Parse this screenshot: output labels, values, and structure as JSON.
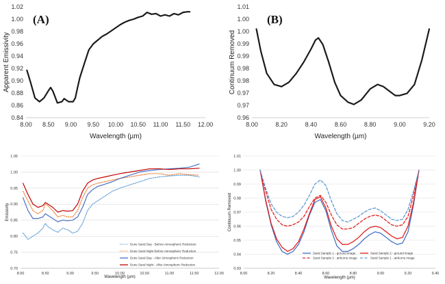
{
  "chart_data": [
    {
      "type": "line",
      "panel_label": "(A)",
      "xlabel": "Wavelength (µm)",
      "ylabel": "Apparent Emissivity",
      "xlim": [
        8.0,
        12.0
      ],
      "ylim": [
        0.84,
        1.02
      ],
      "x_ticks": [
        "8.00",
        "8.50",
        "9.00",
        "9.50",
        "10.00",
        "10.50",
        "11.00",
        "11.50",
        "12.00"
      ],
      "y_ticks": [
        "0.84",
        "0.86",
        "0.88",
        "0.90",
        "0.92",
        "0.94",
        "0.96",
        "0.98",
        "1.00",
        "1.02"
      ],
      "grid": false,
      "series": [
        {
          "color": "#1a1a1a",
          "x": [
            8.02,
            8.1,
            8.2,
            8.3,
            8.4,
            8.5,
            8.55,
            8.6,
            8.7,
            8.8,
            8.85,
            8.95,
            9.05,
            9.1,
            9.15,
            9.2,
            9.3,
            9.4,
            9.5,
            9.6,
            9.7,
            9.8,
            9.9,
            10.0,
            10.1,
            10.2,
            10.3,
            10.4,
            10.5,
            10.6,
            10.7,
            10.8,
            10.9,
            11.0,
            11.1,
            11.2,
            11.3,
            11.4,
            11.5,
            11.6,
            11.65
          ],
          "y": [
            0.917,
            0.898,
            0.872,
            0.866,
            0.872,
            0.884,
            0.889,
            0.883,
            0.864,
            0.866,
            0.871,
            0.866,
            0.866,
            0.872,
            0.889,
            0.905,
            0.928,
            0.95,
            0.96,
            0.966,
            0.972,
            0.976,
            0.981,
            0.986,
            0.991,
            0.995,
            0.998,
            1.0,
            1.003,
            1.005,
            1.011,
            1.008,
            1.009,
            1.005,
            1.007,
            1.005,
            1.009,
            1.007,
            1.011,
            1.012,
            1.012
          ]
        }
      ]
    },
    {
      "type": "line",
      "panel_label": "(B)",
      "xlabel": "Wavelength (µm)",
      "ylabel": "Continuum Removed",
      "xlim": [
        8.0,
        9.2
      ],
      "ylim": [
        0.96,
        1.01
      ],
      "x_ticks": [
        "8.00",
        "8.20",
        "8.40",
        "8.60",
        "8.80",
        "9.00",
        "9.20"
      ],
      "y_ticks": [
        "0.96",
        "0.97",
        "0.97",
        "0.98",
        "0.98",
        "0.99",
        "0.99",
        "1.00",
        "1.00",
        "1.01"
      ],
      "grid": false,
      "series": [
        {
          "color": "#1a1a1a",
          "x": [
            8.03,
            8.06,
            8.1,
            8.15,
            8.2,
            8.25,
            8.3,
            8.35,
            8.4,
            8.43,
            8.45,
            8.48,
            8.52,
            8.56,
            8.6,
            8.65,
            8.69,
            8.74,
            8.8,
            8.85,
            8.89,
            8.93,
            8.97,
            9.0,
            9.05,
            9.1,
            9.15,
            9.2
          ],
          "y": [
            1.0,
            0.99,
            0.98,
            0.975,
            0.974,
            0.976,
            0.98,
            0.985,
            0.991,
            0.995,
            0.996,
            0.993,
            0.985,
            0.976,
            0.97,
            0.967,
            0.966,
            0.968,
            0.973,
            0.975,
            0.974,
            0.972,
            0.97,
            0.97,
            0.971,
            0.975,
            0.986,
            1.0
          ]
        }
      ]
    },
    {
      "type": "line",
      "xlabel": "Wavelength (µm)",
      "ylabel": "Emissivity",
      "xlim": [
        8.0,
        12.0
      ],
      "ylim": [
        0.7,
        1.05
      ],
      "x_ticks": [
        "8.00",
        "8.50",
        "9.00",
        "9.50",
        "10.00",
        "10.50",
        "11.00",
        "11.50",
        "12.00"
      ],
      "y_ticks": [
        "0.70",
        "0.75",
        "0.80",
        "0.85",
        "0.90",
        "0.95",
        "1.00",
        "1.05"
      ],
      "grid": true,
      "legend_position": "bottom-right",
      "series": [
        {
          "name": "Dune Sand Day - Before Atmospheric Reduction",
          "color": "#5b9bd5",
          "dash": "dotted",
          "x": [
            8.05,
            8.15,
            8.25,
            8.35,
            8.45,
            8.5,
            8.55,
            8.65,
            8.75,
            8.85,
            8.95,
            9.05,
            9.15,
            9.25,
            9.35,
            9.45,
            9.55,
            9.7,
            9.85,
            10.0,
            10.2,
            10.4,
            10.6,
            10.8,
            11.0,
            11.2,
            11.4,
            11.6
          ],
          "y": [
            0.81,
            0.79,
            0.8,
            0.81,
            0.825,
            0.84,
            0.83,
            0.82,
            0.812,
            0.825,
            0.82,
            0.81,
            0.815,
            0.84,
            0.88,
            0.9,
            0.91,
            0.925,
            0.94,
            0.95,
            0.96,
            0.97,
            0.98,
            0.985,
            0.988,
            0.99,
            0.99,
            0.985
          ]
        },
        {
          "name": "Dune Sand Night Before Atmospheric Reduction",
          "color": "#ed7d31",
          "dash": "dotted",
          "x": [
            8.05,
            8.15,
            8.25,
            8.35,
            8.45,
            8.5,
            8.55,
            8.65,
            8.75,
            8.85,
            8.95,
            9.05,
            9.15,
            9.25,
            9.35,
            9.45,
            9.55,
            9.7,
            9.85,
            10.0,
            10.2,
            10.4,
            10.6,
            10.8,
            11.0,
            11.2,
            11.4,
            11.6
          ],
          "y": [
            0.94,
            0.91,
            0.88,
            0.87,
            0.88,
            0.9,
            0.895,
            0.88,
            0.86,
            0.865,
            0.86,
            0.86,
            0.88,
            0.92,
            0.95,
            0.96,
            0.965,
            0.97,
            0.975,
            0.98,
            0.985,
            0.99,
            0.995,
            0.995,
            0.99,
            0.995,
            0.992,
            0.99
          ]
        },
        {
          "name": "Dune Sand Day - After Atmospheric Reduction",
          "color": "#4472c4",
          "dash": "solid",
          "x": [
            8.05,
            8.15,
            8.25,
            8.35,
            8.45,
            8.5,
            8.55,
            8.65,
            8.75,
            8.85,
            8.95,
            9.05,
            9.15,
            9.25,
            9.35,
            9.45,
            9.55,
            9.7,
            9.85,
            10.0,
            10.2,
            10.4,
            10.6,
            10.8,
            11.0,
            11.2,
            11.4,
            11.6
          ],
          "y": [
            0.92,
            0.88,
            0.855,
            0.855,
            0.86,
            0.87,
            0.865,
            0.855,
            0.845,
            0.85,
            0.848,
            0.85,
            0.86,
            0.89,
            0.93,
            0.945,
            0.955,
            0.962,
            0.97,
            0.98,
            0.99,
            1.0,
            1.005,
            1.008,
            1.01,
            1.012,
            1.015,
            1.025
          ]
        },
        {
          "name": "Dune Sand Night - After Atmospheric Reduction",
          "color": "#c00000",
          "dash": "solid",
          "x": [
            8.05,
            8.15,
            8.25,
            8.35,
            8.45,
            8.5,
            8.55,
            8.65,
            8.75,
            8.85,
            8.95,
            9.05,
            9.15,
            9.25,
            9.35,
            9.45,
            9.55,
            9.7,
            9.85,
            10.0,
            10.2,
            10.4,
            10.6,
            10.8,
            11.0,
            11.2,
            11.4,
            11.6
          ],
          "y": [
            0.965,
            0.93,
            0.9,
            0.89,
            0.895,
            0.905,
            0.9,
            0.89,
            0.875,
            0.88,
            0.878,
            0.88,
            0.9,
            0.94,
            0.965,
            0.975,
            0.98,
            0.985,
            0.99,
            0.995,
            1.0,
            1.005,
            1.01,
            1.01,
            1.008,
            1.01,
            1.01,
            1.012
          ]
        }
      ]
    },
    {
      "type": "line",
      "xlabel": "Wavelength (µm)",
      "ylabel": "Continuum Removed",
      "xlim": [
        8.0,
        9.4
      ],
      "ylim": [
        0.93,
        1.01
      ],
      "x_ticks": [
        "8.00",
        "8.20",
        "8.40",
        "8.60",
        "8.80",
        "9.00",
        "9.20",
        "9.40"
      ],
      "y_ticks": [
        "0.93",
        "0.94",
        "0.95",
        "0.96",
        "0.97",
        "0.98",
        "0.99",
        "1.00",
        "1.01"
      ],
      "grid": true,
      "legend_position": "bottom",
      "series": [
        {
          "name": "Sand Sample 1 - ground image",
          "color": "#4472c4",
          "dash": "solid",
          "x": [
            8.12,
            8.16,
            8.2,
            8.24,
            8.28,
            8.32,
            8.36,
            8.4,
            8.44,
            8.48,
            8.52,
            8.56,
            8.6,
            8.64,
            8.68,
            8.72,
            8.76,
            8.8,
            8.84,
            8.88,
            8.92,
            8.96,
            9.0,
            9.04,
            9.08,
            9.12,
            9.16,
            9.2,
            9.24,
            9.28
          ],
          "y": [
            1.0,
            0.978,
            0.961,
            0.949,
            0.942,
            0.94,
            0.942,
            0.947,
            0.956,
            0.968,
            0.977,
            0.979,
            0.971,
            0.957,
            0.946,
            0.942,
            0.942,
            0.944,
            0.947,
            0.951,
            0.954,
            0.956,
            0.955,
            0.952,
            0.949,
            0.947,
            0.948,
            0.956,
            0.975,
            1.0
          ]
        },
        {
          "name": "Sand Sample 2 - ground image",
          "color": "#e02020",
          "dash": "solid",
          "x": [
            8.12,
            8.16,
            8.2,
            8.24,
            8.28,
            8.32,
            8.36,
            8.4,
            8.44,
            8.48,
            8.52,
            8.56,
            8.6,
            8.64,
            8.68,
            8.72,
            8.76,
            8.8,
            8.84,
            8.88,
            8.92,
            8.96,
            9.0,
            9.04,
            9.08,
            9.12,
            9.16,
            9.2,
            9.24,
            9.28
          ],
          "y": [
            1.0,
            0.979,
            0.962,
            0.951,
            0.945,
            0.942,
            0.944,
            0.949,
            0.958,
            0.969,
            0.979,
            0.981,
            0.973,
            0.96,
            0.951,
            0.947,
            0.947,
            0.949,
            0.952,
            0.956,
            0.959,
            0.96,
            0.959,
            0.956,
            0.953,
            0.951,
            0.952,
            0.96,
            0.977,
            1.0
          ]
        },
        {
          "name": "Sand Sample 2 - airborne image",
          "color": "#e02020",
          "dash": "dashed",
          "x": [
            8.12,
            8.16,
            8.2,
            8.24,
            8.28,
            8.32,
            8.36,
            8.4,
            8.44,
            8.48,
            8.52,
            8.56,
            8.6,
            8.64,
            8.68,
            8.72,
            8.76,
            8.8,
            8.84,
            8.88,
            8.92,
            8.96,
            9.0,
            9.04,
            9.08,
            9.12,
            9.16,
            9.2,
            9.24,
            9.28
          ],
          "y": [
            1.0,
            0.985,
            0.972,
            0.965,
            0.961,
            0.96,
            0.961,
            0.963,
            0.967,
            0.974,
            0.98,
            0.982,
            0.977,
            0.968,
            0.961,
            0.958,
            0.958,
            0.959,
            0.962,
            0.965,
            0.967,
            0.968,
            0.967,
            0.964,
            0.961,
            0.96,
            0.961,
            0.967,
            0.982,
            1.0
          ]
        },
        {
          "name": "Sand Sample 1 - airborne image",
          "color": "#5b9bd5",
          "dash": "dashed",
          "x": [
            8.12,
            8.16,
            8.2,
            8.24,
            8.28,
            8.32,
            8.36,
            8.4,
            8.44,
            8.48,
            8.52,
            8.56,
            8.6,
            8.64,
            8.68,
            8.72,
            8.76,
            8.8,
            8.84,
            8.88,
            8.92,
            8.96,
            9.0,
            9.04,
            9.08,
            9.12,
            9.16,
            9.2,
            9.24,
            9.28
          ],
          "y": [
            1.0,
            0.987,
            0.976,
            0.97,
            0.967,
            0.966,
            0.967,
            0.97,
            0.975,
            0.982,
            0.99,
            0.993,
            0.989,
            0.978,
            0.969,
            0.964,
            0.963,
            0.965,
            0.967,
            0.97,
            0.972,
            0.973,
            0.971,
            0.968,
            0.965,
            0.964,
            0.965,
            0.972,
            0.985,
            1.0
          ]
        }
      ]
    }
  ]
}
